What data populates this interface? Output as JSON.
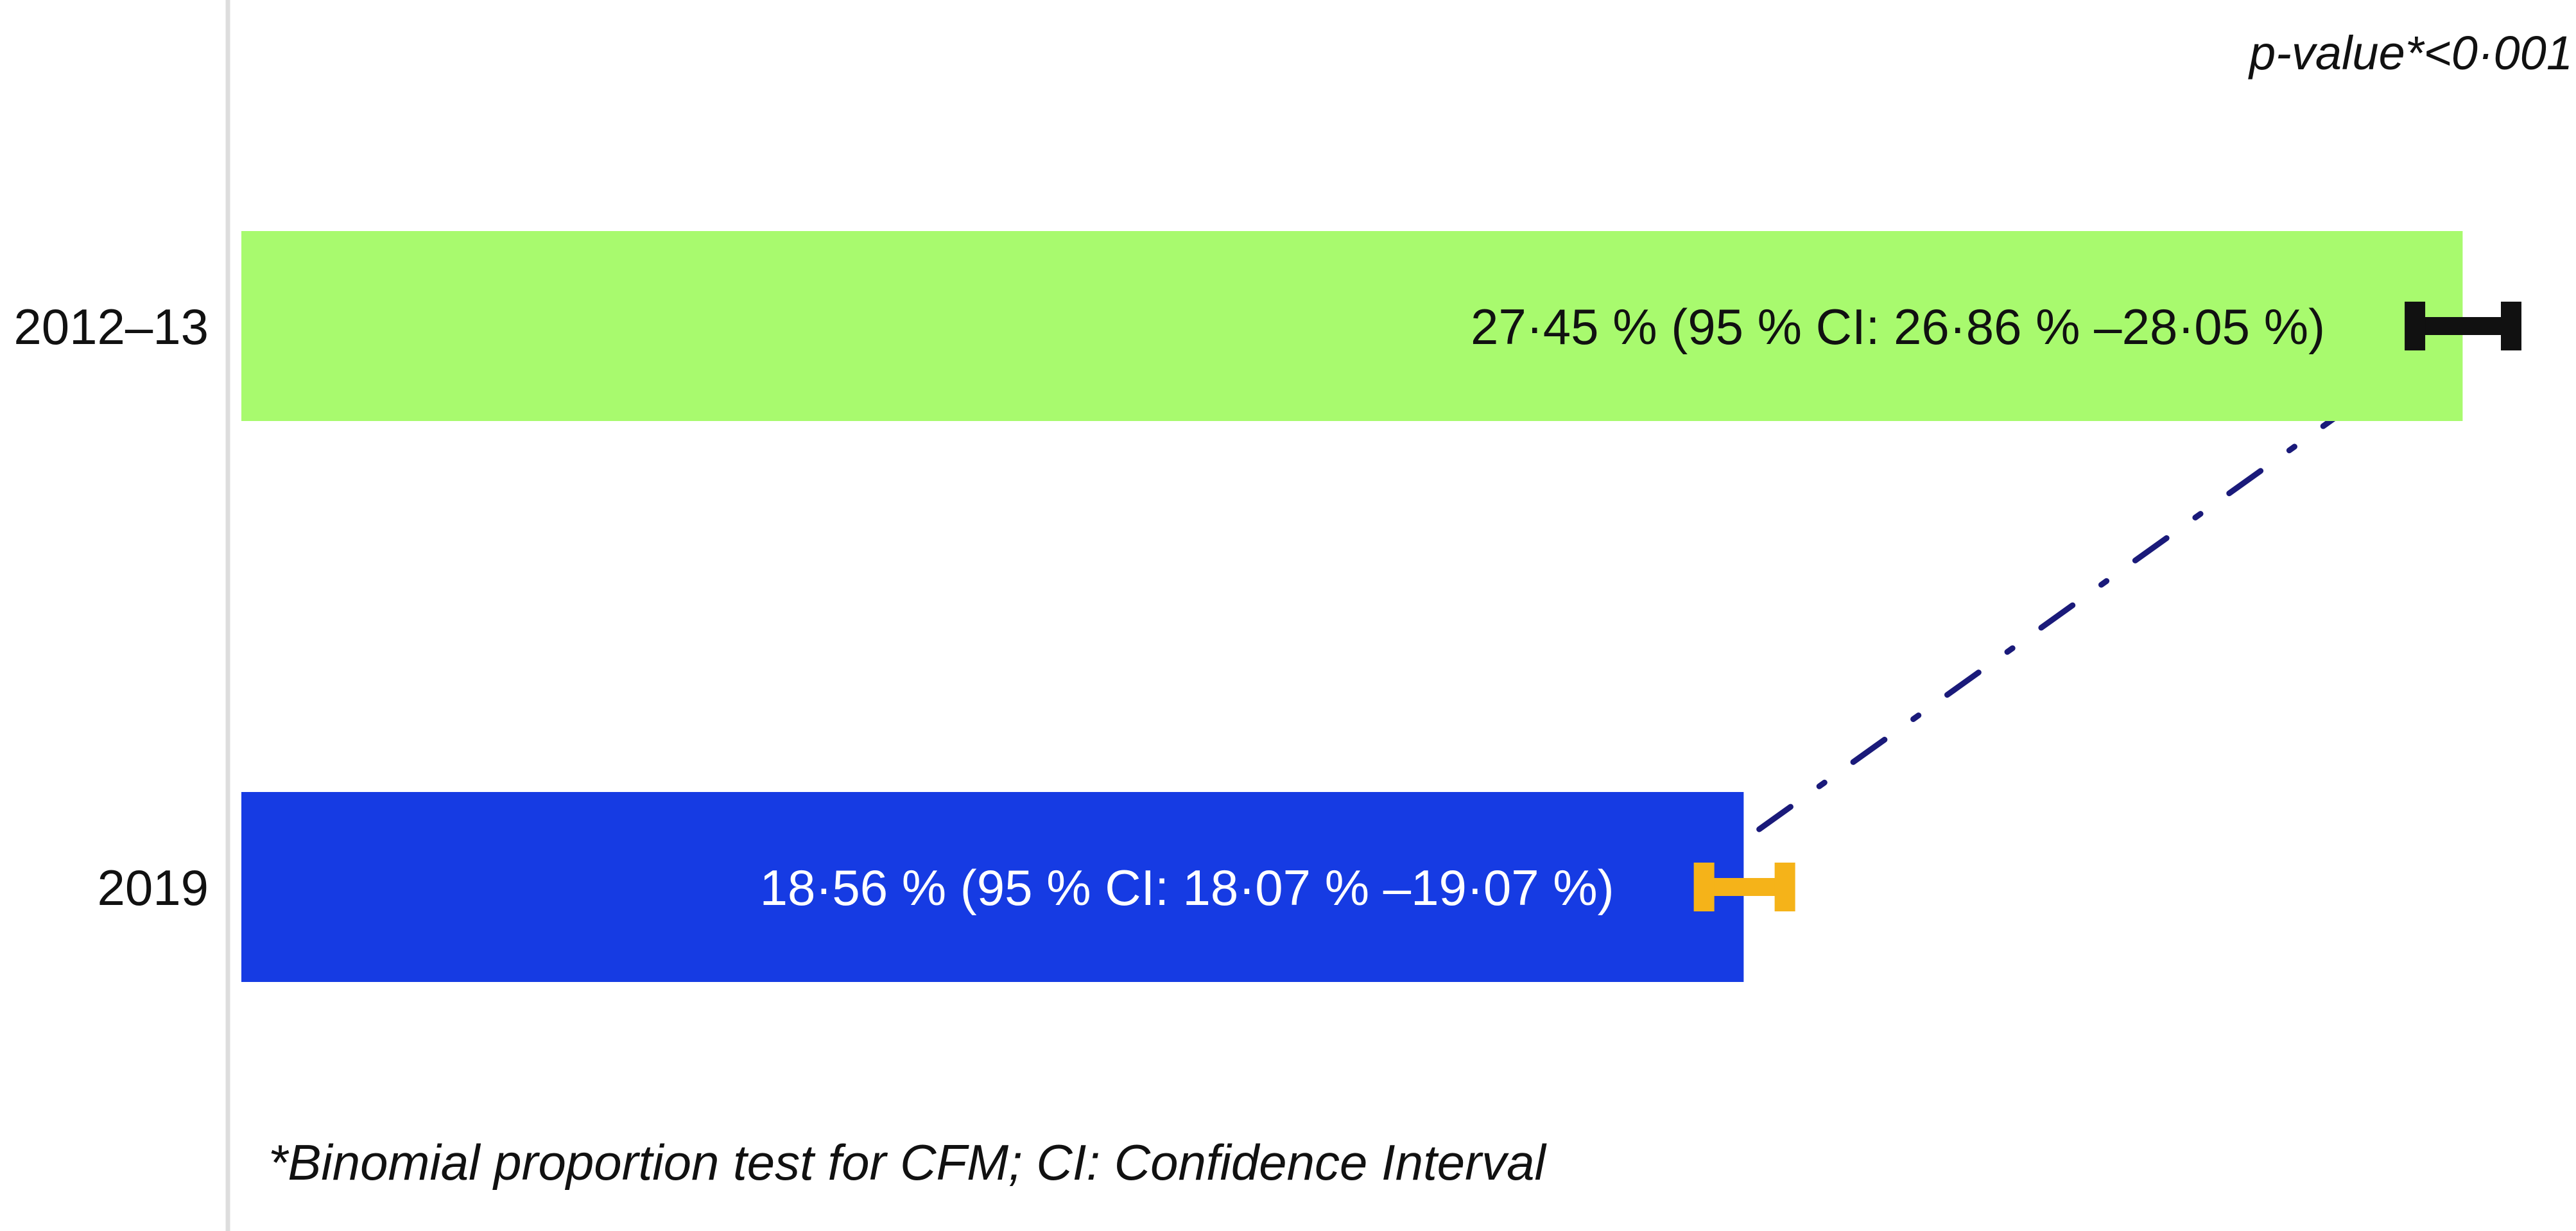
{
  "chart_data": {
    "type": "bar",
    "orientation": "horizontal",
    "categories": [
      "2012–13",
      "2019"
    ],
    "series": [
      {
        "values": [
          27.45,
          18.56
        ],
        "ci_lower": [
          26.86,
          18.07
        ],
        "ci_upper": [
          28.05,
          19.07
        ],
        "bar_colors": [
          "#a8fa6e",
          "#163be3"
        ],
        "ci_colors": [
          "#111111",
          "#f5b319"
        ]
      }
    ],
    "bar_labels": [
      "27·45 %  (95 %  CI: 26·86 % –28·05 %)",
      "18·56 %  (95 %  CI: 18·07 % –19·07 %)"
    ],
    "bar_label_colors": [
      "#111111",
      "#ffffff"
    ],
    "annotation_top_right": "p-value*<0·001",
    "footnote": "*Binomial proportion test for CFM; CI: Confidence Interval",
    "connector": {
      "style": "dash-dot",
      "color": "#1a1a7a"
    },
    "xlim": [
      0,
      28.05
    ],
    "axis_line_color": "#dddddd",
    "grid": false,
    "legend": "none"
  }
}
